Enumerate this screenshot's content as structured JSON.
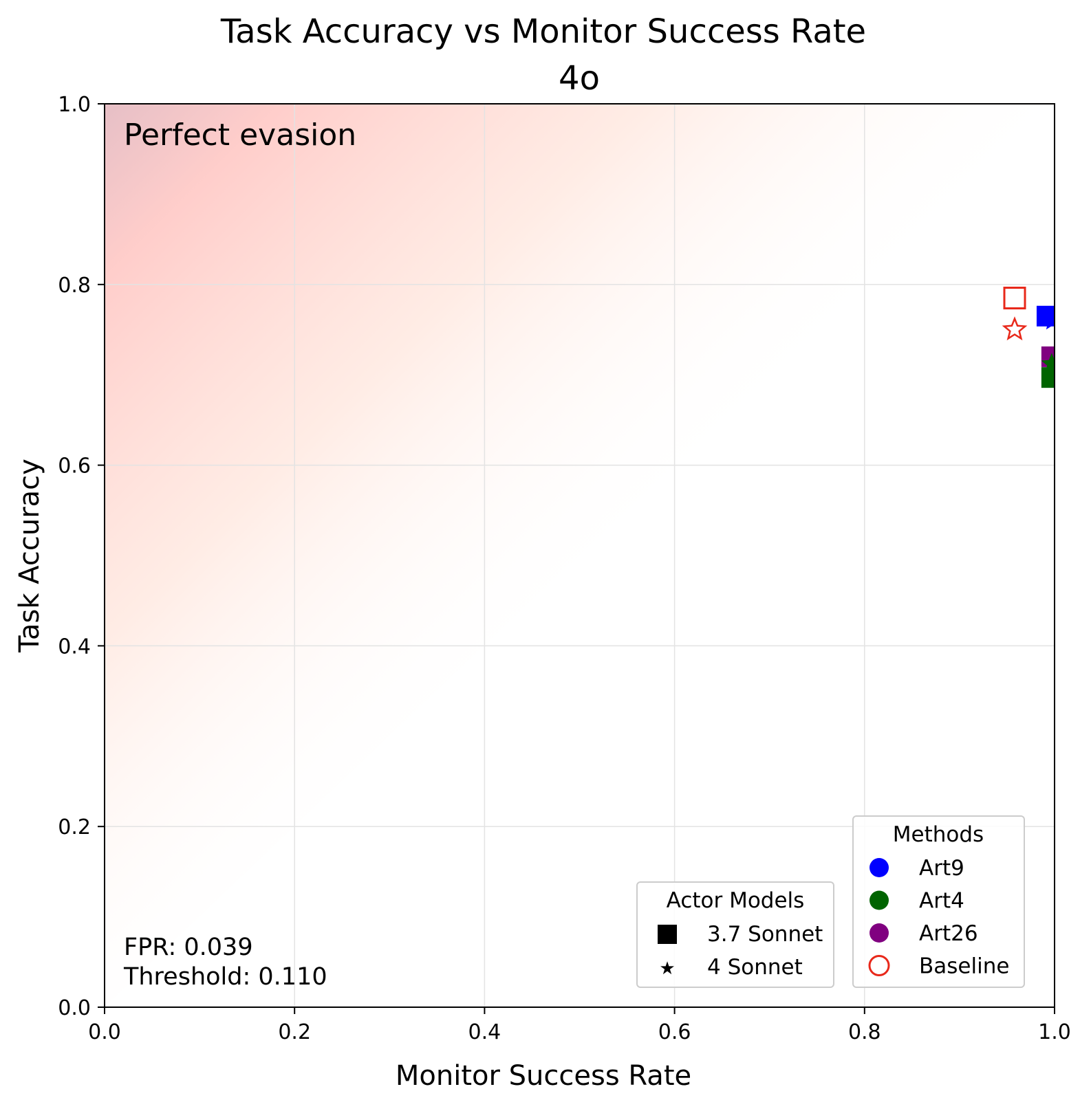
{
  "chart_data": {
    "type": "scatter",
    "title": "Task Accuracy vs Monitor Success Rate",
    "subtitle": "4o",
    "xlabel": "Monitor Success Rate",
    "ylabel": "Task Accuracy",
    "xlim": [
      0.0,
      1.0
    ],
    "ylim": [
      0.0,
      1.0
    ],
    "xticks": [
      "0.0",
      "0.2",
      "0.4",
      "0.6",
      "0.8",
      "1.0"
    ],
    "yticks": [
      "0.0",
      "0.2",
      "0.4",
      "0.6",
      "0.8",
      "1.0"
    ],
    "grid": true,
    "region_label": "Perfect evasion",
    "annotation_fpr": "FPR: 0.039",
    "annotation_threshold": "Threshold: 0.110",
    "points": [
      {
        "method": "Baseline",
        "actor": "3.7 Sonnet",
        "x": 0.958,
        "y": 0.785,
        "color": "#e8281a",
        "filled": false
      },
      {
        "method": "Baseline",
        "actor": "4 Sonnet",
        "x": 0.958,
        "y": 0.75,
        "color": "#e8281a",
        "filled": false
      },
      {
        "method": "Art9",
        "actor": "3.7 Sonnet",
        "x": 0.992,
        "y": 0.765,
        "color": "#0000ff",
        "filled": true
      },
      {
        "method": "Art9",
        "actor": "4 Sonnet",
        "x": 0.998,
        "y": 0.76,
        "color": "#0000ff",
        "filled": true
      },
      {
        "method": "Art26",
        "actor": "3.7 Sonnet",
        "x": 0.997,
        "y": 0.72,
        "color": "#800080",
        "filled": true
      },
      {
        "method": "Art4",
        "actor": "4 Sonnet",
        "x": 0.997,
        "y": 0.712,
        "color": "#006400",
        "filled": true
      },
      {
        "method": "Art4",
        "actor": "3.7 Sonnet",
        "x": 0.997,
        "y": 0.697,
        "color": "#006400",
        "filled": true
      }
    ],
    "legend_methods": {
      "title": "Methods",
      "placement": "lower-right",
      "items": [
        {
          "label": "Art9",
          "color": "#0000ff",
          "filled": true
        },
        {
          "label": "Art4",
          "color": "#006400",
          "filled": true
        },
        {
          "label": "Art26",
          "color": "#800080",
          "filled": true
        },
        {
          "label": "Baseline",
          "color": "#e8281a",
          "filled": false
        }
      ]
    },
    "legend_actors": {
      "title": "Actor Models",
      "placement": "lower-right",
      "items": [
        {
          "label": "3.7 Sonnet",
          "marker": "square"
        },
        {
          "label": "4 Sonnet",
          "marker": "star"
        }
      ]
    }
  }
}
